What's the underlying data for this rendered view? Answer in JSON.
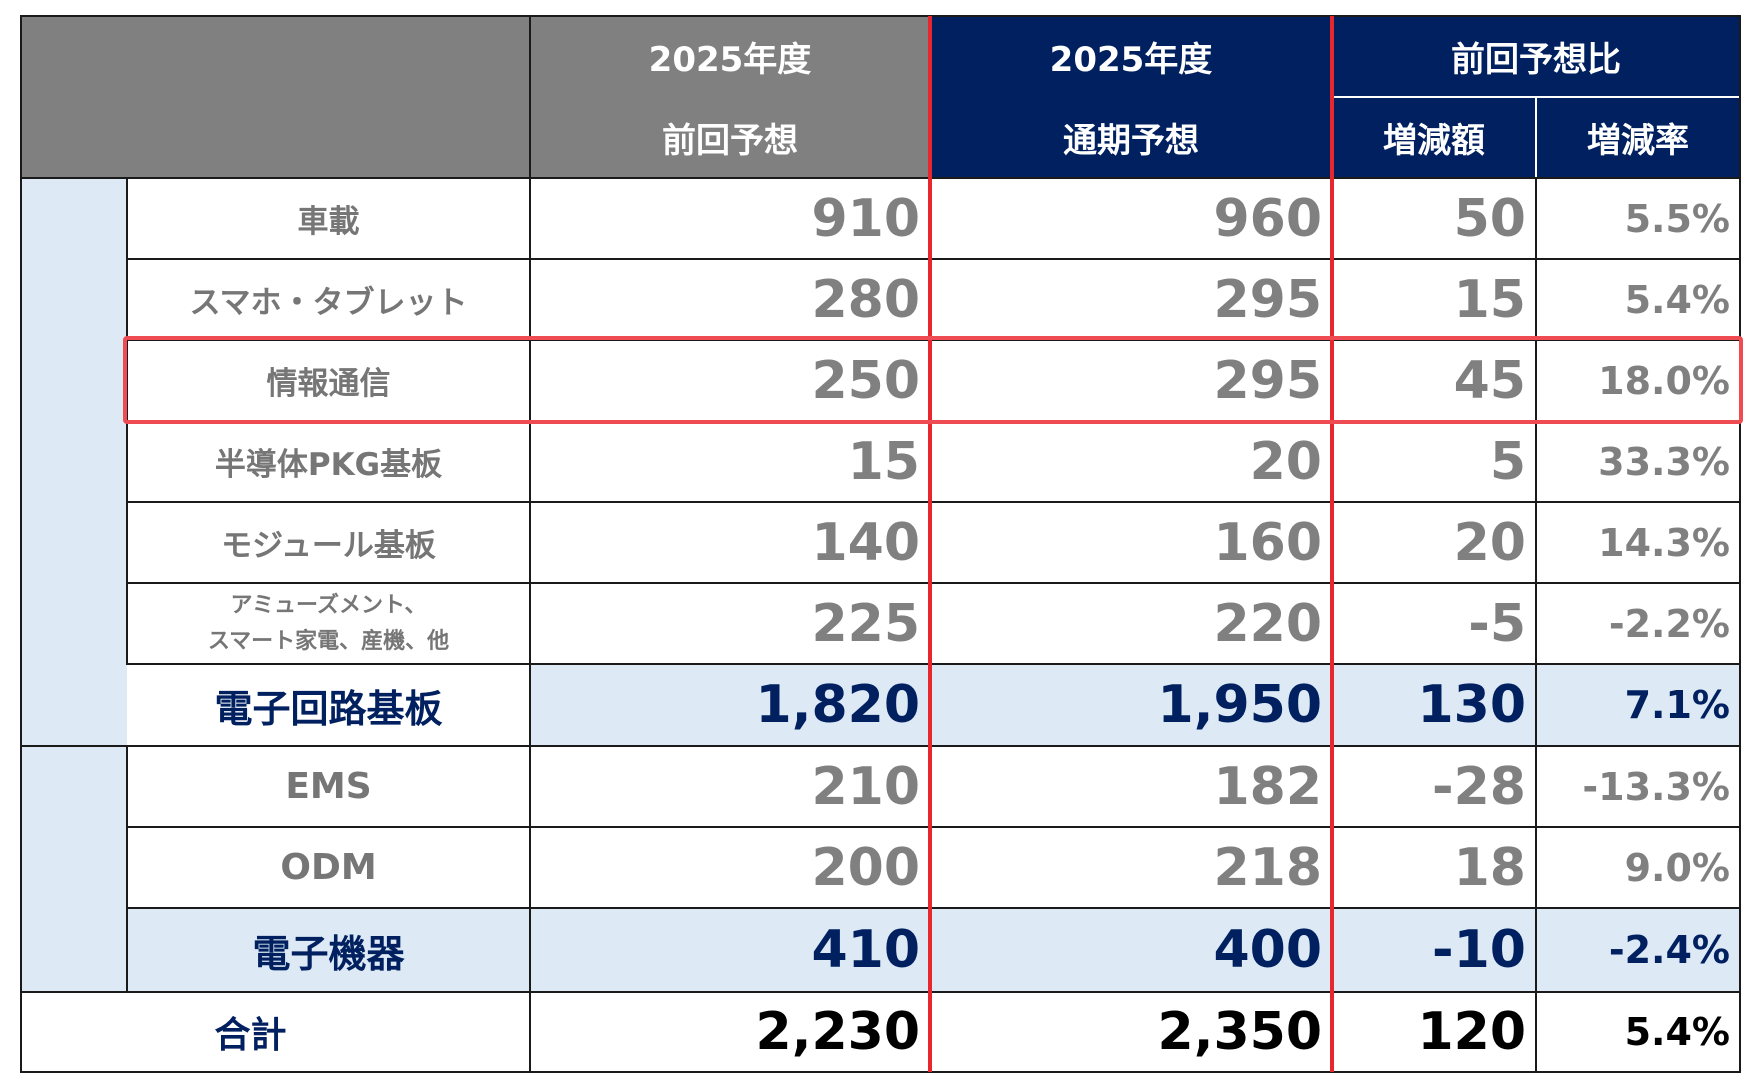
{
  "header": {
    "col_prev_year": "2025年度",
    "col_prev_label": "前回予想",
    "col_full_year": "2025年度",
    "col_full_label": "通期予想",
    "col_compare": "前回予想比",
    "col_diff": "増減額",
    "col_rate": "増減率"
  },
  "circuit_rows": [
    {
      "label": "車載",
      "prev": "910",
      "full": "960",
      "diff": "50",
      "rate": "5.5%"
    },
    {
      "label": "スマホ・タブレット",
      "prev": "280",
      "full": "295",
      "diff": "15",
      "rate": "5.4%"
    },
    {
      "label": "情報通信",
      "prev": "250",
      "full": "295",
      "diff": "45",
      "rate": "18.0%"
    },
    {
      "label": "半導体PKG基板",
      "prev": "15",
      "full": "20",
      "diff": "5",
      "rate": "33.3%"
    },
    {
      "label": "モジュール基板",
      "prev": "140",
      "full": "160",
      "diff": "20",
      "rate": "14.3%"
    },
    {
      "label_line1": "アミューズメント、",
      "label_line2": "スマート家電、産機、他",
      "prev": "225",
      "full": "220",
      "diff": "-5",
      "rate": "-2.2%"
    }
  ],
  "circuit_subtotal": {
    "label": "電子回路基板",
    "prev": "1,820",
    "full": "1,950",
    "diff": "130",
    "rate": "7.1%"
  },
  "device_rows": [
    {
      "label": "EMS",
      "prev": "210",
      "full": "182",
      "diff": "-28",
      "rate": "-13.3%"
    },
    {
      "label": "ODM",
      "prev": "200",
      "full": "218",
      "diff": "18",
      "rate": "9.0%"
    }
  ],
  "device_subtotal": {
    "label": "電子機器",
    "prev": "410",
    "full": "400",
    "diff": "-10",
    "rate": "-2.4%"
  },
  "total": {
    "label": "合計",
    "prev": "2,230",
    "full": "2,350",
    "diff": "120",
    "rate": "5.4%"
  },
  "colors": {
    "navy": "#002060",
    "gray_header": "#808080",
    "subtotal_bg": "#dde9f5",
    "highlight": "#ef4b52",
    "divider_red": "#e8262e"
  },
  "highlighted_row": "情報通信"
}
